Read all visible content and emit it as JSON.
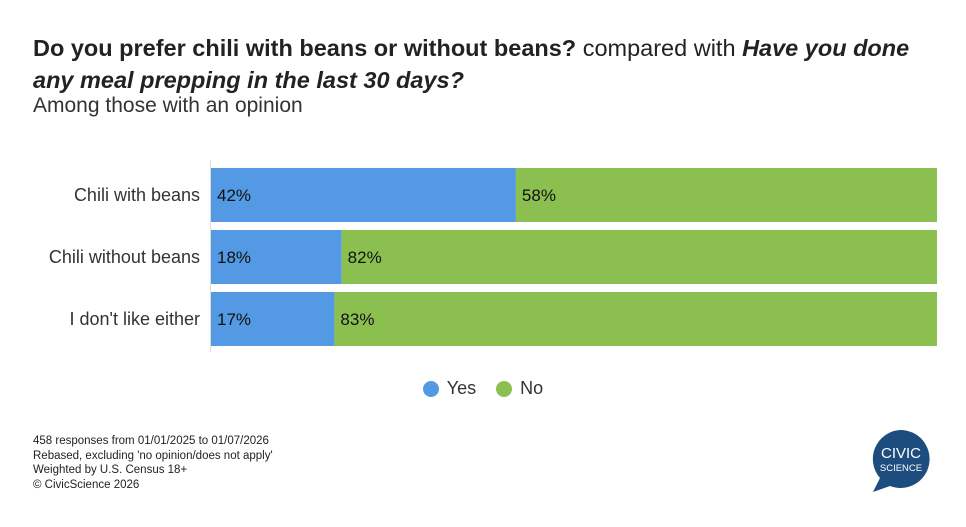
{
  "title": {
    "q1": "Do you prefer chili with beans or without beans?",
    "connector": " compared with ",
    "q2": "Have you done any meal prepping in the last 30 days?"
  },
  "subtitle": "Among those with an opinion",
  "chart_data": {
    "type": "bar",
    "orientation": "horizontal-stacked-100",
    "categories": [
      "Chili with beans",
      "Chili without beans",
      "I don't like either"
    ],
    "series": [
      {
        "name": "Yes",
        "color": "#5499e3",
        "values": [
          42,
          18,
          17
        ]
      },
      {
        "name": "No",
        "color": "#8bc051",
        "values": [
          58,
          82,
          83
        ]
      }
    ],
    "value_labels": [
      [
        "42%",
        "18%",
        "17%"
      ],
      [
        "58%",
        "82%",
        "83%"
      ]
    ],
    "xlim": [
      0,
      100
    ],
    "legend": "bottom-center"
  },
  "notes": [
    "458 responses from 01/01/2025 to 01/07/2026",
    "Rebased, excluding 'no opinion/does not apply'",
    "Weighted by U.S. Census 18+",
    "© CivicScience 2026"
  ],
  "logo": {
    "line1": "CIVIC",
    "line2": "SCIENCE",
    "color": "#1d4c7e"
  }
}
